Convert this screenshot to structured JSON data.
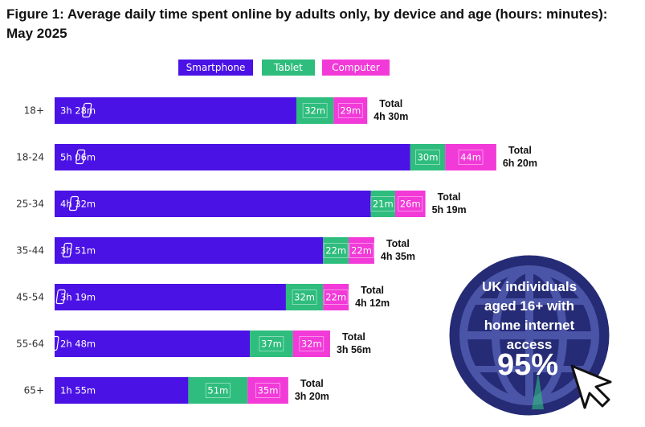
{
  "title": "Figure 1: Average daily time spent online by adults only, by device and age (hours: minutes): May 2025",
  "colors": {
    "smartphone": "#4b12e6",
    "tablet": "#2ebd7d",
    "computer": "#f23ad8",
    "badge": "#262b75"
  },
  "chart_data": {
    "type": "bar",
    "orientation": "horizontal",
    "stacked": true,
    "title": "Figure 1: Average daily time spent online by adults only, by device and age (hours: minutes): May 2025",
    "unit": "minutes",
    "legend_position": "top",
    "categories": [
      "18+",
      "18-24",
      "25-34",
      "35-44",
      "45-54",
      "55-64",
      "65+"
    ],
    "series": [
      {
        "name": "Smartphone",
        "values": [
          208,
          306,
          272,
          231,
          199,
          168,
          115
        ],
        "labels": [
          "3h 28m",
          "5h 06m",
          "4h 32m",
          "3h 51m",
          "3h 19m",
          "2h 48m",
          "1h 55m"
        ]
      },
      {
        "name": "Tablet",
        "values": [
          32,
          30,
          21,
          22,
          32,
          37,
          51
        ],
        "labels": [
          "32m",
          "30m",
          "21m",
          "22m",
          "32m",
          "37m",
          "51m"
        ]
      },
      {
        "name": "Computer",
        "values": [
          29,
          44,
          26,
          22,
          22,
          32,
          35
        ],
        "labels": [
          "29m",
          "44m",
          "26m",
          "22m",
          "22m",
          "32m",
          "35m"
        ]
      }
    ],
    "totals": {
      "heading": "Total",
      "values": [
        "4h 30m",
        "6h 20m",
        "5h 19m",
        "4h 35m",
        "4h 12m",
        "3h 56m",
        "3h 20m"
      ]
    }
  },
  "badge": {
    "lines": [
      "UK individuals",
      "aged 16+ with",
      "home internet",
      "access"
    ],
    "value": "95%",
    "icons": [
      "globe-icon",
      "cursor-arrow-icon"
    ]
  }
}
